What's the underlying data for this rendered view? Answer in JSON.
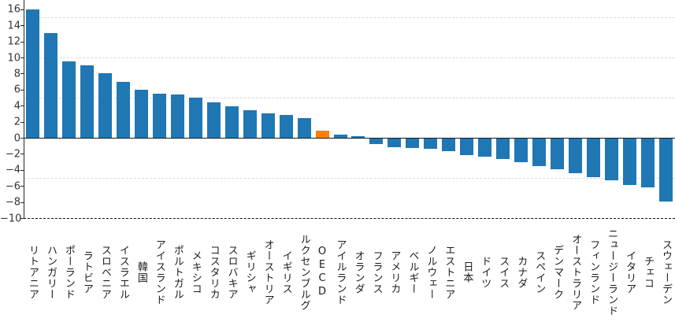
{
  "chart_data": {
    "type": "bar",
    "title": "",
    "xlabel": "",
    "ylabel": "",
    "categories": [
      "リトアニア",
      "ハンガリー",
      "ポーランド",
      "ラトビア",
      "スロベニア",
      "イスラエル",
      "韓国",
      "アイスランド",
      "ポルトガル",
      "メキシコ",
      "コスタリカ",
      "スロバキア",
      "ギリシャ",
      "オーストリア",
      "イギリス",
      "ルクセンブルグ",
      "OECD",
      "アイルランド",
      "オランダ",
      "フランス",
      "アメリカ",
      "ベルギー",
      "ノルウェー",
      "エストニア",
      "日本",
      "ドイツ",
      "スイス",
      "カナダ",
      "スペイン",
      "デンマーク",
      "オーストラリア",
      "フィンランド",
      "ニュージーランド",
      "イタリア",
      "チェコ",
      "スウェーデン"
    ],
    "values": [
      16.0,
      13.0,
      9.5,
      9.0,
      8.0,
      7.0,
      6.0,
      5.5,
      5.4,
      5.0,
      4.4,
      3.9,
      3.4,
      3.0,
      2.8,
      2.5,
      0.9,
      0.4,
      0.2,
      -0.7,
      -1.1,
      -1.2,
      -1.3,
      -1.6,
      -2.1,
      -2.3,
      -2.5,
      -2.9,
      -3.4,
      -3.8,
      -4.3,
      -4.8,
      -5.2,
      -5.8,
      -6.1,
      -7.8
    ],
    "highlight_category": "OECD",
    "colors": {
      "bar": "#1f77b4",
      "highlight_bar": "#ff7f0e"
    },
    "ylim": [
      -10,
      17
    ],
    "yticks": [
      16,
      14,
      12,
      10,
      8,
      6,
      4,
      2,
      0,
      -2,
      -4,
      -6,
      -8,
      -10
    ],
    "ytick_labels": [
      "16",
      "14",
      "12",
      "10",
      "8",
      "6",
      "4",
      "2",
      "0",
      "−2",
      "−4",
      "−6",
      "−8",
      "−10"
    ],
    "gridlines_at": [
      15,
      10,
      5,
      -5
    ],
    "zero_line_at": 0,
    "bottom_dashed_line_at": -10,
    "grid": "dashed-light",
    "legend": "none"
  }
}
